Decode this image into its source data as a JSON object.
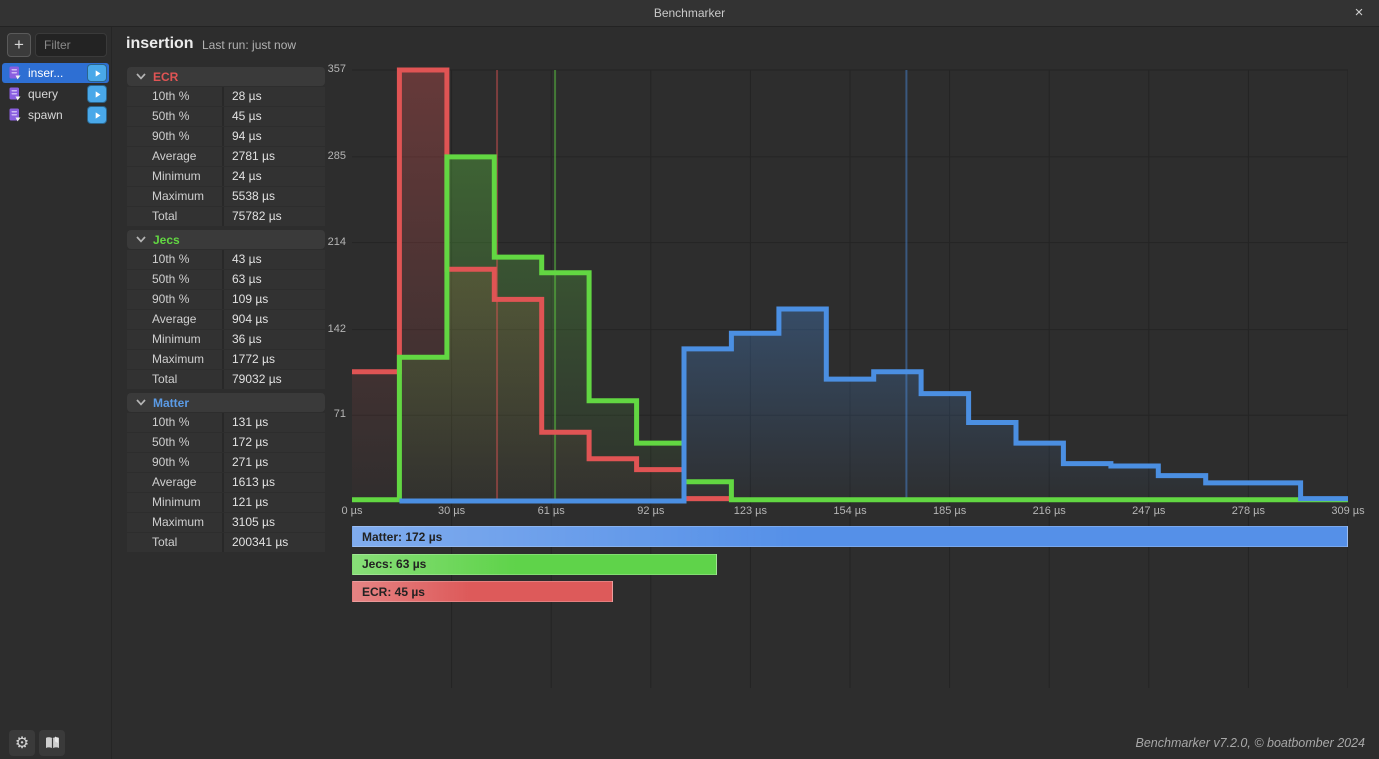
{
  "window": {
    "title": "Benchmarker"
  },
  "icons": {
    "close": "×",
    "add": "+",
    "settings_gear": "⚙"
  },
  "sidebar": {
    "filter_placeholder": "Filter",
    "benchmarks": [
      {
        "label": "inser...",
        "selected": true
      },
      {
        "label": "query",
        "selected": false
      },
      {
        "label": "spawn",
        "selected": false
      }
    ]
  },
  "header": {
    "title": "insertion",
    "last_run": "Last run: just now"
  },
  "stats": {
    "sections": [
      {
        "name": "ECR",
        "color": "#e05454",
        "rows": [
          {
            "label": "10th %",
            "value": "28 µs"
          },
          {
            "label": "50th %",
            "value": "45 µs"
          },
          {
            "label": "90th %",
            "value": "94 µs"
          },
          {
            "label": "Average",
            "value": "2781 µs"
          },
          {
            "label": "Minimum",
            "value": "24 µs"
          },
          {
            "label": "Maximum",
            "value": "5538 µs"
          },
          {
            "label": "Total",
            "value": "75782 µs"
          }
        ]
      },
      {
        "name": "Jecs",
        "color": "#62d742",
        "rows": [
          {
            "label": "10th %",
            "value": "43 µs"
          },
          {
            "label": "50th %",
            "value": "63 µs"
          },
          {
            "label": "90th %",
            "value": "109 µs"
          },
          {
            "label": "Average",
            "value": "904 µs"
          },
          {
            "label": "Minimum",
            "value": "36 µs"
          },
          {
            "label": "Maximum",
            "value": "1772 µs"
          },
          {
            "label": "Total",
            "value": "79032 µs"
          }
        ]
      },
      {
        "name": "Matter",
        "color": "#5b9be6",
        "rows": [
          {
            "label": "10th %",
            "value": "131 µs"
          },
          {
            "label": "50th %",
            "value": "172 µs"
          },
          {
            "label": "90th %",
            "value": "271 µs"
          },
          {
            "label": "Average",
            "value": "1613 µs"
          },
          {
            "label": "Minimum",
            "value": "121 µs"
          },
          {
            "label": "Maximum",
            "value": "3105 µs"
          },
          {
            "label": "Total",
            "value": "200341 µs"
          }
        ]
      }
    ]
  },
  "chart_data": {
    "type": "step-histogram",
    "title": "",
    "x_axis": {
      "unit": "µs",
      "range_us": [
        0,
        309
      ],
      "tick_labels": [
        "0 µs",
        "30 µs",
        "61 µs",
        "92 µs",
        "123 µs",
        "154 µs",
        "185 µs",
        "216 µs",
        "247 µs",
        "278 µs",
        "309 µs"
      ]
    },
    "y_axis": {
      "tick_labels": [
        357,
        285,
        214,
        142,
        71
      ],
      "max": 357,
      "min": 0
    },
    "bin_width_us": 14.714,
    "grid": true,
    "series": [
      {
        "name": "ECR",
        "color": "#e05454",
        "median_us": 45,
        "start_bin": 0,
        "values": [
          107,
          357,
          192,
          167,
          57,
          35,
          26,
          2
        ]
      },
      {
        "name": "Jecs",
        "color": "#62d742",
        "median_us": 63,
        "start_bin": 0,
        "values": [
          1,
          119,
          285,
          202,
          189,
          83,
          48,
          16,
          1,
          1,
          1,
          1,
          1,
          1,
          1,
          1,
          1,
          1,
          1,
          1,
          1
        ]
      },
      {
        "name": "Matter",
        "color": "#4b8fe2",
        "median_us": 172,
        "start_bin": 1,
        "values": [
          0,
          0,
          0,
          0,
          0,
          0,
          126,
          139,
          159,
          101,
          107,
          89,
          65,
          48,
          31,
          29,
          21,
          15,
          15,
          2
        ]
      }
    ],
    "median_bars": [
      {
        "label": "Matter: 172 µs",
        "value_us": 172,
        "color": "#5590e8"
      },
      {
        "label": "Jecs: 63 µs",
        "value_us": 63,
        "color": "#5fd34a"
      },
      {
        "label": "ECR: 45 µs",
        "value_us": 45,
        "color": "#dd5a5a"
      }
    ]
  },
  "footer": {
    "credit": "Benchmarker v7.2.0, © boatbomber 2024"
  }
}
